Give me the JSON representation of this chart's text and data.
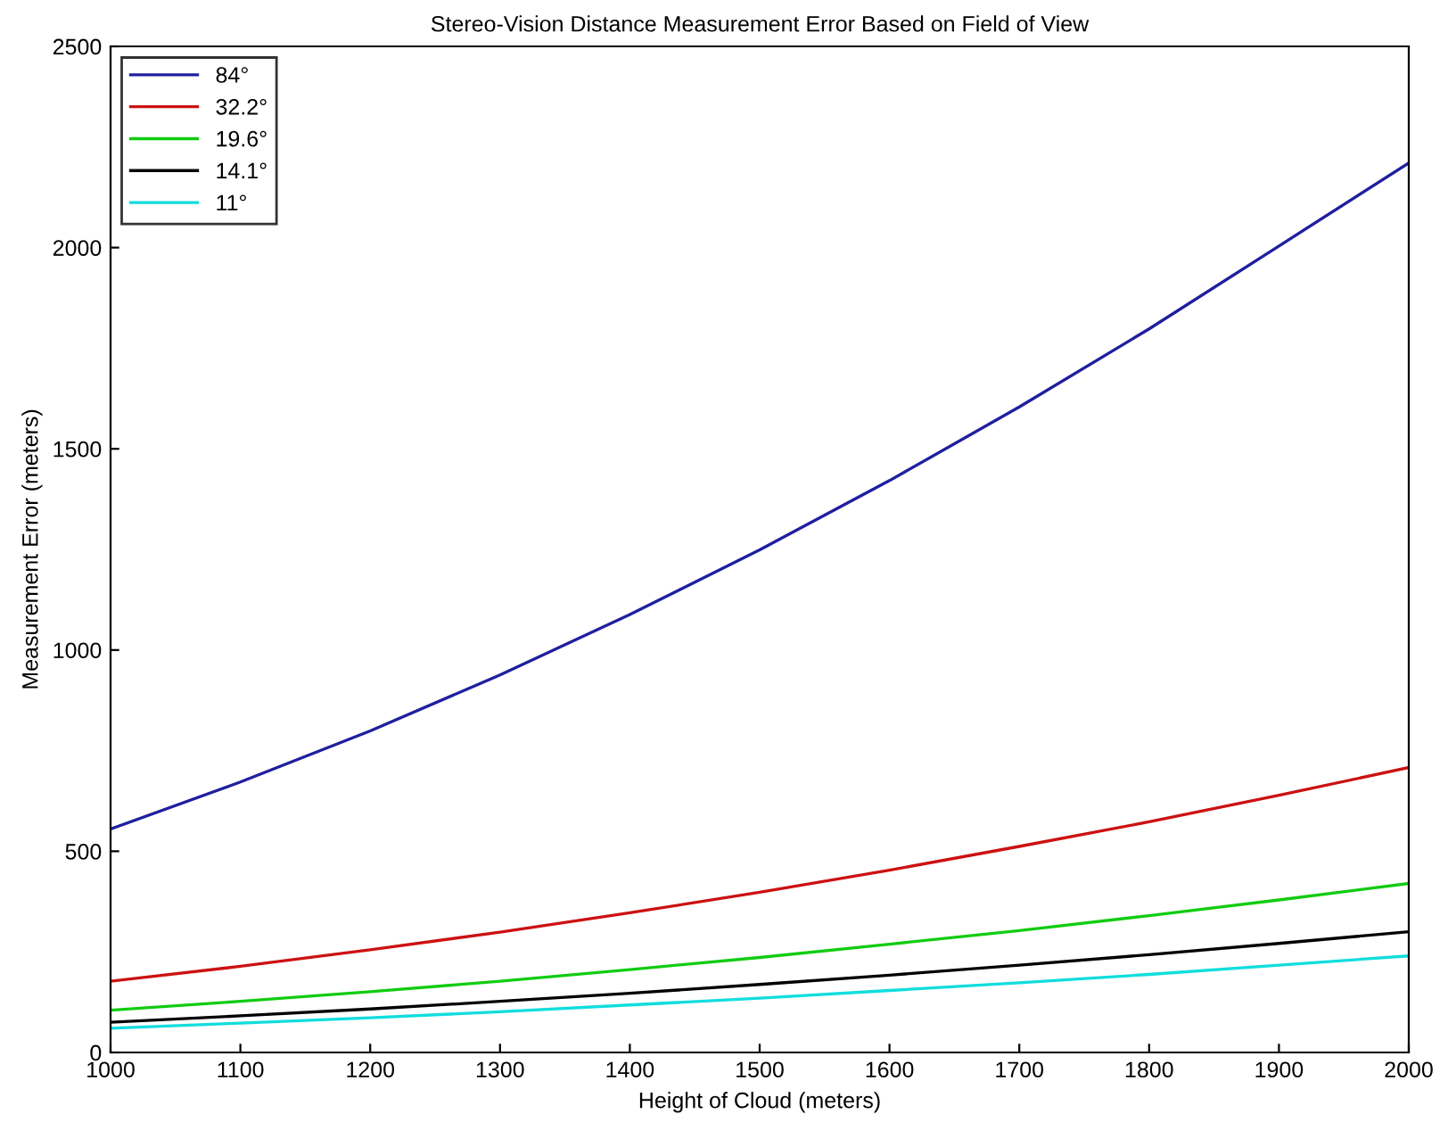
{
  "chart_data": {
    "type": "line",
    "title": "Stereo-Vision Distance Measurement Error Based on Field of View",
    "xlabel": "Height of Cloud (meters)",
    "ylabel": "Measurement Error (meters)",
    "x": [
      1000,
      1100,
      1200,
      1300,
      1400,
      1500,
      1600,
      1700,
      1800,
      1900,
      2000
    ],
    "series": [
      {
        "name": "84°",
        "color": "#1f1f9f",
        "values": [
          555,
          672,
          799,
          938,
          1088,
          1249,
          1421,
          1604,
          1798,
          2004,
          2210
        ]
      },
      {
        "name": "32.2°",
        "color": "#cc1111",
        "values": [
          177,
          214,
          255,
          299,
          347,
          398,
          453,
          512,
          573,
          639,
          708
        ]
      },
      {
        "name": "19.6°",
        "color": "#11cc11",
        "values": [
          105,
          127,
          151,
          177,
          206,
          236,
          269,
          303,
          340,
          379,
          420
        ]
      },
      {
        "name": "14.1°",
        "color": "#000000",
        "values": [
          75,
          91,
          108,
          127,
          147,
          169,
          192,
          217,
          243,
          271,
          300
        ]
      },
      {
        "name": "11°",
        "color": "#11dddd",
        "values": [
          60,
          73,
          86,
          101,
          118,
          135,
          154,
          173,
          194,
          217,
          240
        ]
      }
    ],
    "xlim": [
      1000,
      2000
    ],
    "ylim": [
      0,
      2500
    ],
    "xticks": [
      1000,
      1100,
      1200,
      1300,
      1400,
      1500,
      1600,
      1700,
      1800,
      1900,
      2000
    ],
    "yticks": [
      0,
      500,
      1000,
      1500,
      2000,
      2500
    ],
    "grid": false,
    "legend": "top left",
    "marker": "none",
    "line_style": "solid"
  }
}
